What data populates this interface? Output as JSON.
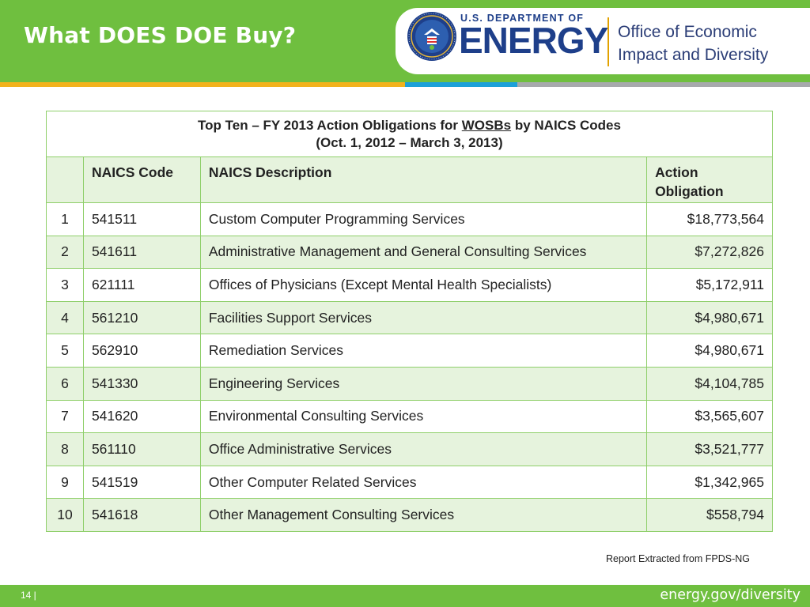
{
  "header": {
    "title": "What DOES DOE Buy?",
    "logo": {
      "department": "U.S. DEPARTMENT OF",
      "agency": "ENERGY",
      "office_line1": "Office of Economic",
      "office_line2": "Impact and Diversity",
      "seal_icon": "doe-seal-icon"
    }
  },
  "table": {
    "caption_prefix": "Top Ten – FY 2013 Action Obligations for ",
    "caption_underlined": "WOSBs",
    "caption_suffix": " by NAICS Codes",
    "caption_line2": "(Oct. 1, 2012 – March 3, 2013)",
    "columns": [
      "",
      "NAICS Code",
      "NAICS Description",
      "Action Obligation"
    ],
    "rows": [
      {
        "rank": "1",
        "code": "541511",
        "description": "Custom Computer Programming Services",
        "amount": "$18,773,564"
      },
      {
        "rank": "2",
        "code": "541611",
        "description": "Administrative Management and General Consulting Services",
        "amount": "$7,272,826"
      },
      {
        "rank": "3",
        "code": "621111",
        "description": "Offices of Physicians (Except Mental Health Specialists)",
        "amount": "$5,172,911"
      },
      {
        "rank": "4",
        "code": "561210",
        "description": "Facilities Support Services",
        "amount": "$4,980,671"
      },
      {
        "rank": "5",
        "code": "562910",
        "description": "Remediation Services",
        "amount": "$4,980,671"
      },
      {
        "rank": "6",
        "code": "541330",
        "description": "Engineering Services",
        "amount": "$4,104,785"
      },
      {
        "rank": "7",
        "code": "541620",
        "description": "Environmental Consulting  Services",
        "amount": "$3,565,607"
      },
      {
        "rank": "8",
        "code": "561110",
        "description": "Office Administrative Services",
        "amount": "$3,521,777"
      },
      {
        "rank": "9",
        "code": "541519",
        "description": "Other Computer Related Services",
        "amount": "$1,342,965"
      },
      {
        "rank": "10",
        "code": "541618",
        "description": "Other Management Consulting Services",
        "amount": "$558,794"
      }
    ]
  },
  "note": "Report Extracted from FPDS-NG",
  "footer": {
    "page": "14 |",
    "url": "energy.gov/diversity"
  },
  "colors": {
    "brand_green": "#6fbf3f",
    "row_shade": "#e6f3dd",
    "energy_blue": "#1e3f8a",
    "accent_yellow": "#f2b21c",
    "accent_blue": "#1ca0d8"
  }
}
